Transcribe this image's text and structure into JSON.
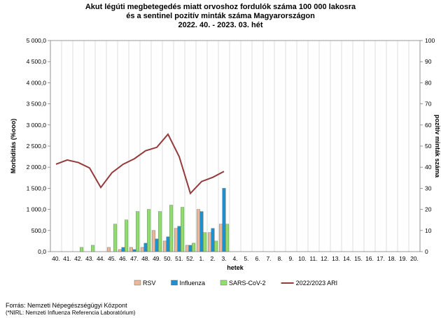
{
  "chart_data": {
    "type": "bar+line",
    "title_lines": [
      "Akut légúti megbetegedés miatt orvoshoz fordulók száma 100 000 lakosra",
      "és a sentinel pozitív minták száma Magyarországon",
      "2022. 40. - 2023. 03. hét"
    ],
    "xlabel": "hetek",
    "ylabel_left": "Morbiditás (%ooo)",
    "ylabel_right": "pozitív minták száma",
    "ylim_left": [
      0,
      5000
    ],
    "ylim_right": [
      0,
      100
    ],
    "yticks_left": [
      "0,0",
      "500,0",
      "1 000,0",
      "1 500,0",
      "2 000,0",
      "2 500,0",
      "3 000,0",
      "3 500,0",
      "4 000,0",
      "4 500,0",
      "5 000,0"
    ],
    "yticks_right": [
      "0",
      "10",
      "20",
      "30",
      "40",
      "50",
      "60",
      "70",
      "80",
      "90",
      "100"
    ],
    "categories": [
      "40.",
      "41.",
      "42.",
      "43.",
      "44.",
      "45.",
      "46.",
      "47.",
      "48.",
      "49.",
      "50.",
      "51.",
      "52.",
      "1.",
      "2.",
      "3.",
      "4.",
      "5.",
      "6.",
      "7.",
      "8.",
      "9.",
      "10.",
      "11.",
      "12.",
      "13.",
      "14.",
      "15.",
      "16.",
      "17.",
      "18.",
      "19.",
      "20."
    ],
    "series": [
      {
        "name": "RSV",
        "kind": "bar",
        "axis": "right",
        "color": "#e8b898",
        "values": [
          0,
          0,
          0,
          0,
          0,
          2,
          1,
          2,
          2,
          10,
          5,
          11,
          3,
          20,
          9,
          13,
          null,
          null,
          null,
          null,
          null,
          null,
          null,
          null,
          null,
          null,
          null,
          null,
          null,
          null,
          null,
          null,
          null
        ]
      },
      {
        "name": "Influenza",
        "kind": "bar",
        "axis": "right",
        "color": "#1f8fd0",
        "values": [
          0,
          0,
          0,
          0,
          0,
          0,
          2,
          1,
          4,
          6,
          7,
          12,
          3,
          19,
          11,
          30,
          null,
          null,
          null,
          null,
          null,
          null,
          null,
          null,
          null,
          null,
          null,
          null,
          null,
          null,
          null,
          null,
          null
        ]
      },
      {
        "name": "SARS-CoV-2",
        "kind": "bar",
        "axis": "right",
        "color": "#8ee06a",
        "values": [
          0,
          0,
          2,
          3,
          0,
          13,
          15,
          19,
          20,
          19,
          22,
          21,
          4,
          9,
          5,
          13,
          null,
          null,
          null,
          null,
          null,
          null,
          null,
          null,
          null,
          null,
          null,
          null,
          null,
          null,
          null,
          null,
          null
        ]
      },
      {
        "name": "2022/2023 ARI",
        "kind": "line",
        "axis": "left",
        "color": "#943a3a",
        "values": [
          2070,
          2170,
          2110,
          1980,
          1520,
          1870,
          2070,
          2200,
          2390,
          2470,
          2780,
          2250,
          1380,
          1660,
          1760,
          1900,
          null,
          null,
          null,
          null,
          null,
          null,
          null,
          null,
          null,
          null,
          null,
          null,
          null,
          null,
          null,
          null,
          null
        ]
      }
    ],
    "legend_position": "bottom",
    "grid": "vertical"
  },
  "source_lines": [
    "Forrás: Nemzeti Népegészségügyi Központ",
    "(*NIRL: Nemzeti Influenza Referencia Laboratórium)"
  ]
}
